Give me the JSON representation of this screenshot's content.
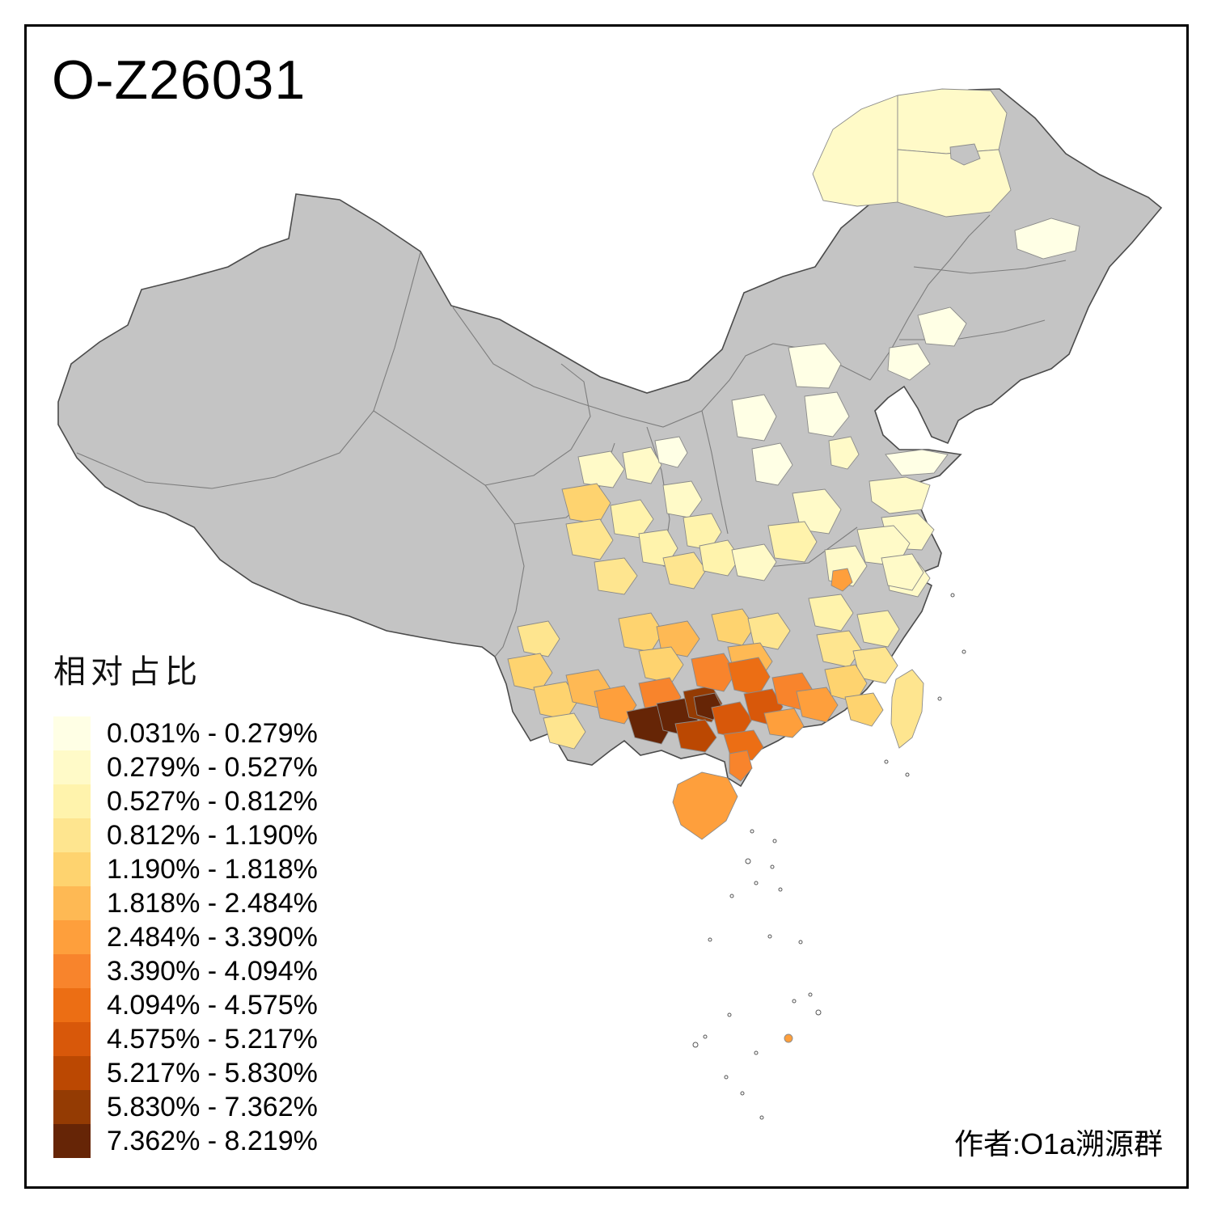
{
  "title": "O-Z26031",
  "credit": "作者:O1a溯源群",
  "legend": {
    "title": "相对占比",
    "classes": [
      {
        "label": "0.031% - 0.279%",
        "color": "#FFFFE5"
      },
      {
        "label": "0.279% - 0.527%",
        "color": "#FFFAC8"
      },
      {
        "label": "0.527% - 0.812%",
        "color": "#FFF3AC"
      },
      {
        "label": "0.812% - 1.190%",
        "color": "#FEE58F"
      },
      {
        "label": "1.190% - 1.818%",
        "color": "#FED36F"
      },
      {
        "label": "1.818% - 2.484%",
        "color": "#FEB954"
      },
      {
        "label": "2.484% - 3.390%",
        "color": "#FE9F3C"
      },
      {
        "label": "3.390% - 4.094%",
        "color": "#F8842C"
      },
      {
        "label": "4.094% - 4.575%",
        "color": "#EC6E14"
      },
      {
        "label": "4.575% - 5.217%",
        "color": "#D8580A"
      },
      {
        "label": "5.217% - 5.830%",
        "color": "#BB4802"
      },
      {
        "label": "5.830% - 7.362%",
        "color": "#943B03"
      },
      {
        "label": "7.362% - 8.219%",
        "color": "#662506"
      }
    ]
  },
  "map": {
    "type": "choropleth",
    "no_data_color": "#C4C4C4",
    "boundary_color": "#4B4B4B",
    "regions": {
      "heilongjiang_w": "#FFFAC8",
      "heilongjiang_n": "#FFFAC8",
      "heilongjiang_e": "#FFFAC8",
      "heilongjiang_far_e": "#FFFFE5",
      "jilin_1": "#FFFFE5",
      "jilin_2": "#FFFFE5",
      "beijing": "#FFFFE5",
      "hebei": "#FFFFE5",
      "shanxi_1": "#FFFFE5",
      "shanxi_2": "#FFFFE5",
      "hebei_s": "#FFFAC8",
      "shandong_pen": "#FFFFE5",
      "shandong_1": "#FFFAC8",
      "shandong_2": "#FFFAC8",
      "henan_1": "#FFFAC8",
      "henan_2": "#FFF3AC",
      "jiangsu_1": "#FFFAC8",
      "jiangsu_2": "#FFFAC8",
      "anhui": "#FFFAC8",
      "anhui_orange": "#FE9F3C",
      "gansu_1": "#FFFAC8",
      "shaanxi_1": "#FFFAC8",
      "shaanxi_2": "#FFF3AC",
      "ningxia": "#FFFFE5",
      "sichuan_n": "#FFFAC8",
      "sichuan_w1": "#FED36F",
      "sichuan_w2": "#FEE58F",
      "chengdu": "#FFF3AC",
      "sichuan_e": "#FFF3AC",
      "sichuan_s": "#FEE58F",
      "chongqing": "#FEE58F",
      "hubei_w": "#FFF3AC",
      "hubei_e": "#FFFAC8",
      "guizhou_w": "#FED36F",
      "guizhou_c": "#FEB954",
      "guizhou_s": "#FED36F",
      "hunan_w": "#FED36F",
      "hunan_c": "#FEE58F",
      "hunan_s": "#FEB954",
      "jiangxi_n": "#FFF3AC",
      "jiangxi_s": "#FEE58F",
      "fujian_n": "#FFF3AC",
      "fujian_s": "#FEE58F",
      "zhejiang": "#FFFAC8",
      "yunnan_nw": "#FEE58F",
      "yunnan_w": "#FED36F",
      "yunnan_c": "#FED36F",
      "yunnan_s": "#FEE58F",
      "yunnan_e": "#FEB954",
      "yunnan_e2": "#FE9F3C",
      "guangxi_nw": "#F8842C",
      "guangxi_baise": "#662506",
      "guangxi_d1": "#662506",
      "guangxi_d2": "#943B03",
      "guangxi_core": "#662506",
      "guangxi_nanning": "#BB4802",
      "guangxi_c": "#D8580A",
      "guangxi_liuzhou": "#F8842C",
      "guangxi_ne": "#EC6E14",
      "guangxi_wuzhou": "#D8580A",
      "guangxi_se": "#EC6E14",
      "leizhou": "#F8842C",
      "guangdong_w": "#FE9F3C",
      "guangdong_n": "#F8842C",
      "pearl_delta": "#FE9F3C",
      "guangdong_e": "#FED36F",
      "guangdong_e2": "#FED36F",
      "hainan": "#FE9F3C",
      "taiwan": "#FEE58F",
      "xisha": "#FE9F3C"
    }
  }
}
